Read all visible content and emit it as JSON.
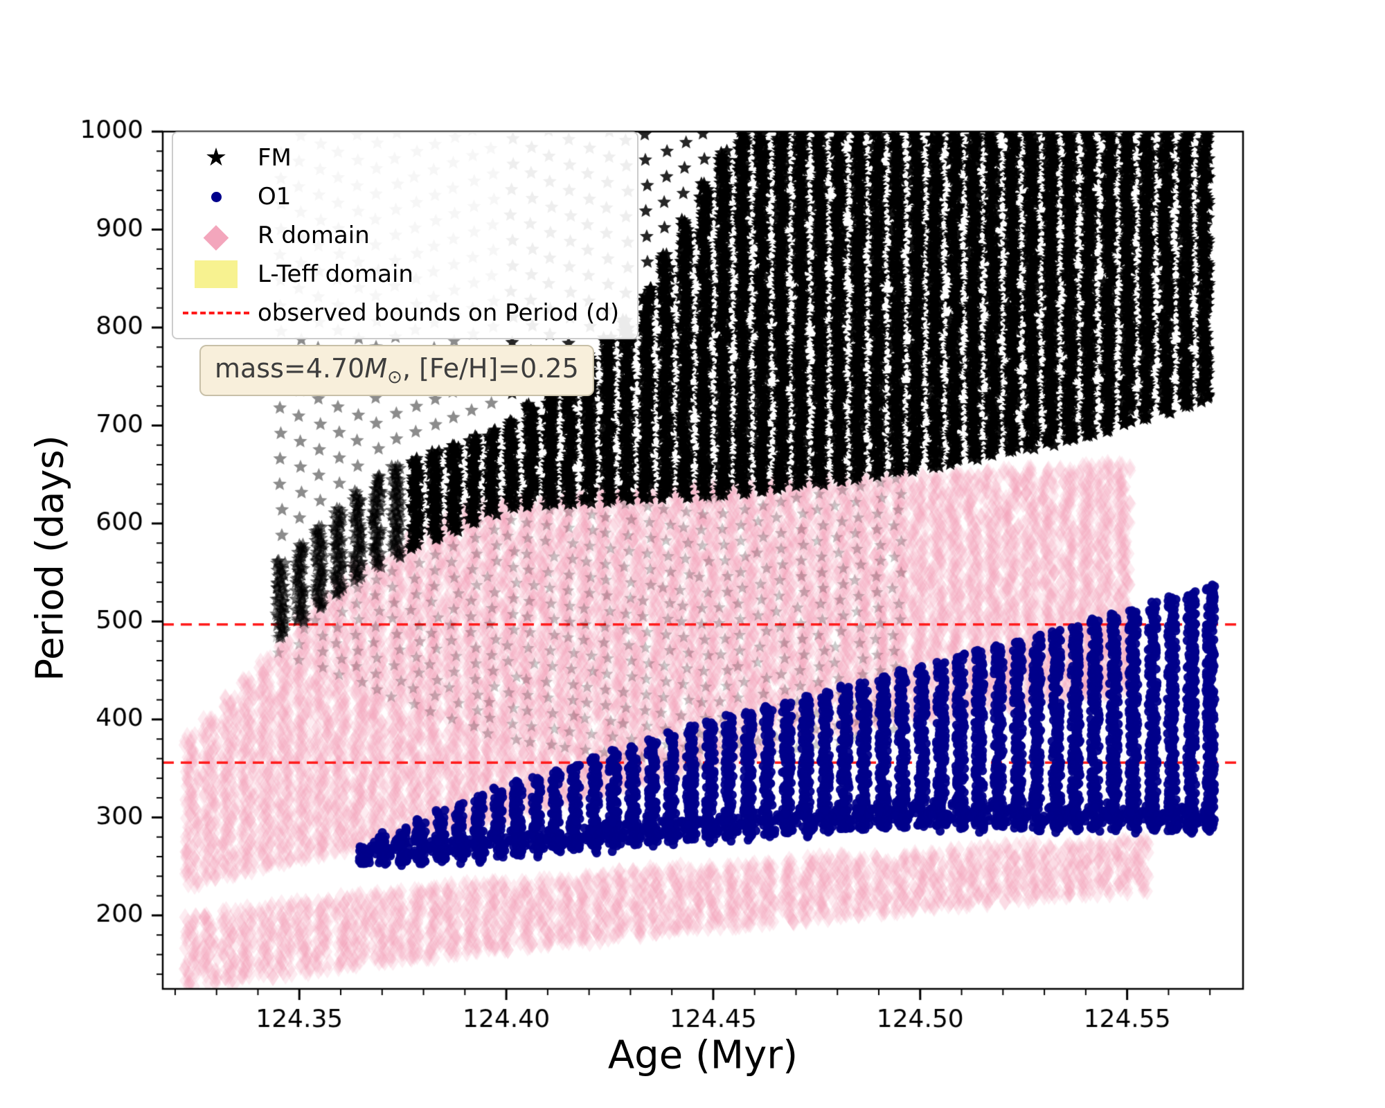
{
  "chart_data": {
    "type": "scatter",
    "title": "",
    "xlabel": "Age (Myr)",
    "ylabel": "Period (days)",
    "xlim": [
      124.317,
      124.578
    ],
    "ylim": [
      125,
      1000
    ],
    "xticks": [
      124.35,
      124.4,
      124.45,
      124.5,
      124.55
    ],
    "xtick_labels": [
      "124.35",
      "124.40",
      "124.45",
      "124.50",
      "124.55"
    ],
    "yticks": [
      200,
      300,
      400,
      500,
      600,
      700,
      800,
      900,
      1000
    ],
    "x_minor_step": 0.01,
    "y_minor_step": 20,
    "grid": false,
    "legend_position": "upper left",
    "hlines": {
      "label": "observed bounds on Period (d)",
      "values": [
        497,
        356
      ],
      "color": "#ff1a1a",
      "style": "dashed"
    },
    "annotation": {
      "text_prefix": "mass=4.70",
      "mass_symbol": "M",
      "mass_subscript": "⊙",
      "text_suffix": ", [Fe/H]=0.25"
    },
    "legend": {
      "items": [
        {
          "label": "FM",
          "marker": "star",
          "color": "#000000"
        },
        {
          "label": "O1",
          "marker": "dot",
          "color": "#00008b"
        },
        {
          "label": "R domain",
          "marker": "diamond",
          "color": "#f3a6bc"
        },
        {
          "label": "L-Teff domain",
          "marker": "square",
          "color": "#f7f290"
        },
        {
          "label": "observed bounds on Period (d)",
          "marker": "dashed-line",
          "color": "#ff1a1a"
        }
      ]
    },
    "series": [
      {
        "name": "FM",
        "marker": "star",
        "color": "#000000",
        "marker_radius": 10.5,
        "column_step_myr": 0.00465,
        "column_jitter_myr": 0.0011,
        "age_start": 124.3455,
        "age_end": 124.571,
        "period_step_dense": 3.2,
        "dense_lower_envelope": [
          [
            124.3455,
            485
          ],
          [
            124.37,
            560
          ],
          [
            124.4,
            617
          ],
          [
            124.46,
            632
          ],
          [
            124.5,
            655
          ],
          [
            124.54,
            688
          ],
          [
            124.571,
            728
          ]
        ],
        "dense_upper_envelope": [
          [
            124.3455,
            562
          ],
          [
            124.37,
            655
          ],
          [
            124.4,
            702
          ],
          [
            124.43,
            812
          ],
          [
            124.455,
            1000
          ],
          [
            124.571,
            1000
          ]
        ],
        "sparse_upper_limit": 1000,
        "sparse_period_step": 26,
        "ghost_lower_envelope": [
          [
            124.3455,
            468
          ],
          [
            124.4,
            380
          ],
          [
            124.45,
            352
          ],
          [
            124.497,
            392
          ]
        ],
        "ghost_age_end": 124.497
      },
      {
        "name": "O1",
        "marker": "dot",
        "color": "#00008b",
        "marker_radius": 6.5,
        "column_step_myr": 0.00465,
        "column_jitter_myr": 0.0011,
        "age_start": 124.3655,
        "age_end": 124.571,
        "period_step": 2.6,
        "lower_envelope": [
          [
            124.3655,
            252
          ],
          [
            124.4,
            262
          ],
          [
            124.45,
            280
          ],
          [
            124.5,
            292
          ],
          [
            124.571,
            287
          ]
        ],
        "upper_envelope": [
          [
            124.3655,
            272
          ],
          [
            124.39,
            318
          ],
          [
            124.42,
            360
          ],
          [
            124.45,
            400
          ],
          [
            124.48,
            432
          ],
          [
            124.51,
            466
          ],
          [
            124.54,
            500
          ],
          [
            124.571,
            538
          ]
        ]
      },
      {
        "name": "R domain (upper band)",
        "marker": "diamond",
        "color_rgba": "rgba(244,162,183,0.2)",
        "marker_radius": 13,
        "column_step_myr": 0.0045,
        "column_jitter_myr": 0.0018,
        "age_start": 124.324,
        "age_end": 124.552,
        "period_step": 5,
        "lower_envelope": [
          [
            124.324,
            232
          ],
          [
            124.35,
            258
          ],
          [
            124.4,
            300
          ],
          [
            124.44,
            345
          ],
          [
            124.47,
            378
          ],
          [
            124.5,
            402
          ],
          [
            124.552,
            430
          ]
        ],
        "upper_envelope": [
          [
            124.324,
            385
          ],
          [
            124.34,
            455
          ],
          [
            124.36,
            545
          ],
          [
            124.385,
            605
          ],
          [
            124.4,
            625
          ],
          [
            124.45,
            638
          ],
          [
            124.5,
            650
          ],
          [
            124.552,
            663
          ]
        ]
      },
      {
        "name": "R domain (lower band)",
        "marker": "diamond",
        "color_rgba": "rgba(244,162,183,0.2)",
        "marker_radius": 13,
        "column_step_myr": 0.0045,
        "column_jitter_myr": 0.0018,
        "age_start": 124.324,
        "age_end": 124.556,
        "period_step": 5,
        "lower_envelope": [
          [
            124.324,
            128
          ],
          [
            124.35,
            143
          ],
          [
            124.4,
            166
          ],
          [
            124.45,
            188
          ],
          [
            124.5,
            207
          ],
          [
            124.556,
            228
          ]
        ],
        "upper_envelope": [
          [
            124.324,
            198
          ],
          [
            124.35,
            213
          ],
          [
            124.4,
            236
          ],
          [
            124.45,
            252
          ],
          [
            124.5,
            265
          ],
          [
            124.556,
            280
          ]
        ]
      }
    ]
  }
}
